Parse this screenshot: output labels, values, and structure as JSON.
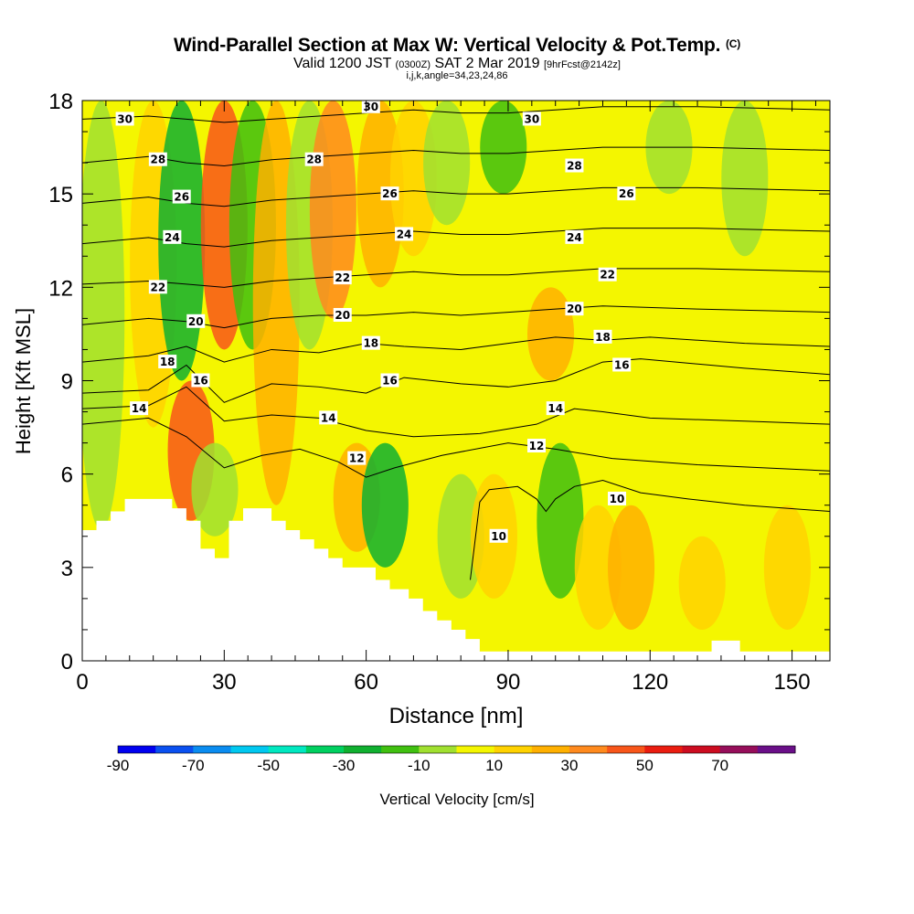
{
  "header": {
    "title_main": "Wind-Parallel Section at Max W: Vertical Velocity & Pot.Temp.",
    "title_mark": "(C)",
    "subtitle_a": "Valid 1200 JST",
    "subtitle_b": "(0300Z)",
    "subtitle_c": "SAT 2 Mar 2019",
    "subtitle_d": "[9hrFcst@2142z]",
    "subtitle2": "i,j,k,angle=34,23,24,86"
  },
  "colors": {
    "background_fill": "#f4f600",
    "terrain": "#ffffff",
    "contour": "#000000"
  },
  "chart_data": {
    "type": "heatmap",
    "xlabel": "Distance [nm]",
    "ylabel": "Height [Kft MSL]",
    "xlim": [
      0,
      158
    ],
    "ylim": [
      0,
      18
    ],
    "xticks": [
      0,
      30,
      60,
      90,
      120,
      150
    ],
    "yticks": [
      0,
      3,
      6,
      9,
      12,
      15,
      18
    ],
    "colorbar": {
      "label": "Vertical Velocity [cm/s]",
      "ticks": [
        "-90",
        "-70",
        "-50",
        "-30",
        "-10",
        "10",
        "30",
        "50",
        "70"
      ],
      "bins": [
        -90,
        -80,
        -70,
        -60,
        -50,
        -40,
        -30,
        -20,
        -10,
        0,
        10,
        20,
        30,
        40,
        50,
        60,
        70,
        80
      ],
      "colors": [
        "#0000f0",
        "#0a50f0",
        "#0a8cf0",
        "#00c8f0",
        "#00e8c0",
        "#00d060",
        "#10b030",
        "#40c010",
        "#a0e030",
        "#f4f600",
        "#ffd200",
        "#ffb000",
        "#ff8a1e",
        "#f8561a",
        "#ea1d10",
        "#cc0c20",
        "#960e5a",
        "#6a0f88"
      ]
    },
    "velocity_features": [
      {
        "x": 4,
        "y0": 4.2,
        "y1": 18,
        "w": -10
      },
      {
        "x": 15,
        "y0": 7.5,
        "y1": 18,
        "w": 10
      },
      {
        "x": 23,
        "y0": 4.5,
        "y1": 9,
        "w": 40
      },
      {
        "x": 21,
        "y0": 9,
        "y1": 18,
        "w": -30
      },
      {
        "x": 28,
        "y0": 4,
        "y1": 7,
        "w": -10
      },
      {
        "x": 30,
        "y0": 10,
        "y1": 18,
        "w": 40
      },
      {
        "x": 36,
        "y0": 10,
        "y1": 18,
        "w": -20
      },
      {
        "x": 41,
        "y0": 5,
        "y1": 18,
        "w": 20
      },
      {
        "x": 48,
        "y0": 10,
        "y1": 18,
        "w": -10
      },
      {
        "x": 53,
        "y0": 11,
        "y1": 18,
        "w": 30
      },
      {
        "x": 58,
        "y0": 3.5,
        "y1": 7,
        "w": 20
      },
      {
        "x": 64,
        "y0": 3,
        "y1": 7,
        "w": -30
      },
      {
        "x": 63,
        "y0": 12,
        "y1": 18,
        "w": 20
      },
      {
        "x": 70,
        "y0": 13,
        "y1": 18,
        "w": 10
      },
      {
        "x": 77,
        "y0": 14,
        "y1": 18,
        "w": -10
      },
      {
        "x": 80,
        "y0": 2,
        "y1": 6,
        "w": -10
      },
      {
        "x": 87,
        "y0": 2,
        "y1": 6,
        "w": 10
      },
      {
        "x": 89,
        "y0": 15,
        "y1": 18,
        "w": -20
      },
      {
        "x": 101,
        "y0": 2,
        "y1": 7,
        "w": -20
      },
      {
        "x": 99,
        "y0": 9,
        "y1": 12,
        "w": 20
      },
      {
        "x": 109,
        "y0": 1,
        "y1": 5,
        "w": 10
      },
      {
        "x": 116,
        "y0": 1,
        "y1": 5,
        "w": 20
      },
      {
        "x": 124,
        "y0": 15,
        "y1": 18,
        "w": -10
      },
      {
        "x": 131,
        "y0": 1,
        "y1": 4,
        "w": 10
      },
      {
        "x": 140,
        "y0": 13,
        "y1": 18,
        "w": -10
      },
      {
        "x": 149,
        "y0": 1,
        "y1": 5,
        "w": 10
      }
    ],
    "isentropes": [
      {
        "level": 10,
        "points": [
          [
            82,
            2.6
          ],
          [
            84,
            5.1
          ],
          [
            86,
            5.5
          ],
          [
            92,
            5.6
          ],
          [
            96,
            5.2
          ],
          [
            98,
            4.8
          ],
          [
            100,
            5.2
          ],
          [
            104,
            5.6
          ],
          [
            110,
            5.8
          ],
          [
            118,
            5.4
          ],
          [
            128,
            5.2
          ],
          [
            140,
            5.0
          ],
          [
            158,
            4.8
          ]
        ]
      },
      {
        "level": 12,
        "points": [
          [
            0,
            7.6
          ],
          [
            14,
            7.8
          ],
          [
            22,
            7.2
          ],
          [
            30,
            6.2
          ],
          [
            38,
            6.6
          ],
          [
            46,
            6.8
          ],
          [
            54,
            6.4
          ],
          [
            60,
            5.9
          ],
          [
            66,
            6.2
          ],
          [
            76,
            6.6
          ],
          [
            90,
            7.0
          ],
          [
            100,
            6.8
          ],
          [
            112,
            6.5
          ],
          [
            130,
            6.3
          ],
          [
            158,
            6.1
          ]
        ]
      },
      {
        "level": 14,
        "points": [
          [
            0,
            8.1
          ],
          [
            14,
            8.2
          ],
          [
            22,
            8.8
          ],
          [
            30,
            7.7
          ],
          [
            40,
            7.9
          ],
          [
            50,
            7.8
          ],
          [
            60,
            7.4
          ],
          [
            70,
            7.2
          ],
          [
            84,
            7.3
          ],
          [
            96,
            7.6
          ],
          [
            104,
            8.1
          ],
          [
            110,
            8.0
          ],
          [
            120,
            7.8
          ],
          [
            140,
            7.7
          ],
          [
            158,
            7.6
          ]
        ]
      },
      {
        "level": 16,
        "points": [
          [
            0,
            8.6
          ],
          [
            14,
            8.7
          ],
          [
            22,
            9.5
          ],
          [
            30,
            8.3
          ],
          [
            40,
            8.9
          ],
          [
            50,
            8.8
          ],
          [
            60,
            8.6
          ],
          [
            68,
            9.1
          ],
          [
            80,
            8.9
          ],
          [
            90,
            8.8
          ],
          [
            100,
            9.0
          ],
          [
            110,
            9.6
          ],
          [
            118,
            9.7
          ],
          [
            140,
            9.4
          ],
          [
            158,
            9.2
          ]
        ]
      },
      {
        "level": 18,
        "points": [
          [
            0,
            9.6
          ],
          [
            14,
            9.8
          ],
          [
            22,
            10.1
          ],
          [
            30,
            9.6
          ],
          [
            40,
            10.0
          ],
          [
            50,
            9.9
          ],
          [
            60,
            10.2
          ],
          [
            68,
            10.1
          ],
          [
            80,
            10.0
          ],
          [
            90,
            10.2
          ],
          [
            100,
            10.4
          ],
          [
            110,
            10.3
          ],
          [
            120,
            10.4
          ],
          [
            140,
            10.2
          ],
          [
            158,
            10.1
          ]
        ]
      },
      {
        "level": 20,
        "points": [
          [
            0,
            10.8
          ],
          [
            14,
            11.0
          ],
          [
            22,
            10.9
          ],
          [
            30,
            10.7
          ],
          [
            40,
            11.0
          ],
          [
            50,
            11.1
          ],
          [
            60,
            11.1
          ],
          [
            70,
            11.2
          ],
          [
            80,
            11.1
          ],
          [
            90,
            11.2
          ],
          [
            100,
            11.3
          ],
          [
            110,
            11.4
          ],
          [
            130,
            11.3
          ],
          [
            158,
            11.2
          ]
        ]
      },
      {
        "level": 22,
        "points": [
          [
            0,
            12.1
          ],
          [
            14,
            12.2
          ],
          [
            22,
            12.1
          ],
          [
            30,
            12.0
          ],
          [
            40,
            12.2
          ],
          [
            50,
            12.3
          ],
          [
            60,
            12.4
          ],
          [
            70,
            12.5
          ],
          [
            80,
            12.4
          ],
          [
            90,
            12.4
          ],
          [
            100,
            12.5
          ],
          [
            110,
            12.6
          ],
          [
            130,
            12.6
          ],
          [
            158,
            12.5
          ]
        ]
      },
      {
        "level": 24,
        "points": [
          [
            0,
            13.4
          ],
          [
            14,
            13.6
          ],
          [
            22,
            13.4
          ],
          [
            30,
            13.3
          ],
          [
            40,
            13.5
          ],
          [
            50,
            13.6
          ],
          [
            60,
            13.7
          ],
          [
            70,
            13.8
          ],
          [
            80,
            13.7
          ],
          [
            90,
            13.7
          ],
          [
            100,
            13.8
          ],
          [
            110,
            13.9
          ],
          [
            130,
            13.9
          ],
          [
            158,
            13.8
          ]
        ]
      },
      {
        "level": 26,
        "points": [
          [
            0,
            14.7
          ],
          [
            14,
            14.9
          ],
          [
            22,
            14.7
          ],
          [
            30,
            14.6
          ],
          [
            40,
            14.8
          ],
          [
            50,
            14.9
          ],
          [
            60,
            15.0
          ],
          [
            70,
            15.1
          ],
          [
            80,
            15.0
          ],
          [
            90,
            15.0
          ],
          [
            100,
            15.1
          ],
          [
            110,
            15.2
          ],
          [
            130,
            15.2
          ],
          [
            158,
            15.1
          ]
        ]
      },
      {
        "level": 28,
        "points": [
          [
            0,
            16.0
          ],
          [
            14,
            16.2
          ],
          [
            22,
            16.0
          ],
          [
            30,
            15.9
          ],
          [
            40,
            16.1
          ],
          [
            50,
            16.2
          ],
          [
            60,
            16.3
          ],
          [
            70,
            16.4
          ],
          [
            80,
            16.3
          ],
          [
            90,
            16.3
          ],
          [
            100,
            16.4
          ],
          [
            110,
            16.5
          ],
          [
            130,
            16.5
          ],
          [
            158,
            16.4
          ]
        ]
      },
      {
        "level": 30,
        "points": [
          [
            0,
            17.4
          ],
          [
            14,
            17.5
          ],
          [
            22,
            17.4
          ],
          [
            30,
            17.3
          ],
          [
            40,
            17.4
          ],
          [
            50,
            17.5
          ],
          [
            60,
            17.6
          ],
          [
            70,
            17.7
          ],
          [
            80,
            17.6
          ],
          [
            90,
            17.6
          ],
          [
            100,
            17.7
          ],
          [
            110,
            17.8
          ],
          [
            130,
            17.8
          ],
          [
            158,
            17.7
          ]
        ]
      }
    ],
    "contour_labels": [
      {
        "text": "30",
        "x": 9,
        "y": 17.4
      },
      {
        "text": "28",
        "x": 16,
        "y": 16.1
      },
      {
        "text": "26",
        "x": 21,
        "y": 14.9
      },
      {
        "text": "24",
        "x": 19,
        "y": 13.6
      },
      {
        "text": "22",
        "x": 16,
        "y": 12.0
      },
      {
        "text": "20",
        "x": 24,
        "y": 10.9
      },
      {
        "text": "18",
        "x": 18,
        "y": 9.6
      },
      {
        "text": "16",
        "x": 25,
        "y": 9.0
      },
      {
        "text": "14",
        "x": 12,
        "y": 8.1
      },
      {
        "text": "30",
        "x": 61,
        "y": 17.8
      },
      {
        "text": "28",
        "x": 49,
        "y": 16.1
      },
      {
        "text": "26",
        "x": 65,
        "y": 15.0
      },
      {
        "text": "24",
        "x": 68,
        "y": 13.7
      },
      {
        "text": "22",
        "x": 55,
        "y": 12.3
      },
      {
        "text": "20",
        "x": 55,
        "y": 11.1
      },
      {
        "text": "18",
        "x": 61,
        "y": 10.2
      },
      {
        "text": "16",
        "x": 65,
        "y": 9.0
      },
      {
        "text": "14",
        "x": 52,
        "y": 7.8
      },
      {
        "text": "12",
        "x": 58,
        "y": 6.5
      },
      {
        "text": "30",
        "x": 95,
        "y": 17.4
      },
      {
        "text": "28",
        "x": 104,
        "y": 15.9
      },
      {
        "text": "26",
        "x": 115,
        "y": 15.0
      },
      {
        "text": "24",
        "x": 104,
        "y": 13.6
      },
      {
        "text": "22",
        "x": 111,
        "y": 12.4
      },
      {
        "text": "20",
        "x": 104,
        "y": 11.3
      },
      {
        "text": "18",
        "x": 110,
        "y": 10.4
      },
      {
        "text": "16",
        "x": 114,
        "y": 9.5
      },
      {
        "text": "14",
        "x": 100,
        "y": 8.1
      },
      {
        "text": "12",
        "x": 96,
        "y": 6.9
      },
      {
        "text": "10",
        "x": 113,
        "y": 5.2
      },
      {
        "text": "10",
        "x": 88,
        "y": 4.0
      }
    ],
    "terrain_height": [
      [
        0,
        4.2
      ],
      [
        3,
        4.2
      ],
      [
        3,
        4.5
      ],
      [
        6,
        4.5
      ],
      [
        6,
        4.8
      ],
      [
        9,
        4.8
      ],
      [
        9,
        5.2
      ],
      [
        19,
        5.2
      ],
      [
        19,
        4.9
      ],
      [
        22,
        4.9
      ],
      [
        22,
        4.5
      ],
      [
        25,
        4.5
      ],
      [
        25,
        3.6
      ],
      [
        28,
        3.6
      ],
      [
        28,
        3.3
      ],
      [
        31,
        3.3
      ],
      [
        31,
        4.5
      ],
      [
        34,
        4.5
      ],
      [
        34,
        4.9
      ],
      [
        40,
        4.9
      ],
      [
        40,
        4.5
      ],
      [
        43,
        4.5
      ],
      [
        43,
        4.2
      ],
      [
        46,
        4.2
      ],
      [
        46,
        3.9
      ],
      [
        49,
        3.9
      ],
      [
        49,
        3.6
      ],
      [
        52,
        3.6
      ],
      [
        52,
        3.3
      ],
      [
        55,
        3.3
      ],
      [
        55,
        3.0
      ],
      [
        62,
        3.0
      ],
      [
        62,
        2.6
      ],
      [
        65,
        2.6
      ],
      [
        65,
        2.3
      ],
      [
        69,
        2.3
      ],
      [
        69,
        2.0
      ],
      [
        72,
        2.0
      ],
      [
        72,
        1.6
      ],
      [
        75,
        1.6
      ],
      [
        75,
        1.3
      ],
      [
        78,
        1.3
      ],
      [
        78,
        1.0
      ],
      [
        81,
        1.0
      ],
      [
        81,
        0.7
      ],
      [
        84,
        0.7
      ],
      [
        84,
        0.3
      ],
      [
        120,
        0.3
      ],
      [
        120,
        0.3
      ],
      [
        133,
        0.3
      ],
      [
        133,
        0.65
      ],
      [
        139,
        0.65
      ],
      [
        139,
        0.3
      ],
      [
        158,
        0.3
      ]
    ]
  }
}
